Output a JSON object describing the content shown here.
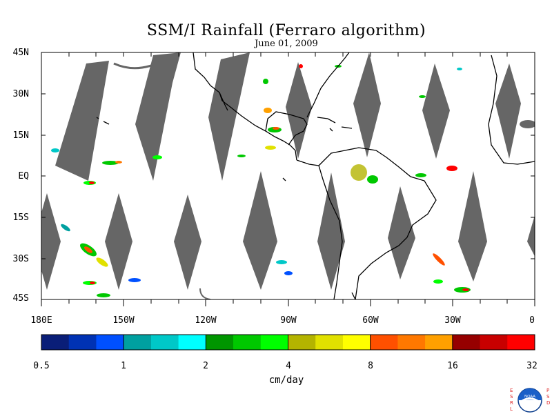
{
  "title": "SSM/I Rainfall (Ferraro algorithm)",
  "subtitle": "June 01, 2009",
  "lat_labels": [
    "45N",
    "30N",
    "15N",
    "EQ",
    "15S",
    "30S",
    "45S"
  ],
  "lon_labels": [
    "180E",
    "150W",
    "120W",
    "90W",
    "60W",
    "30W",
    "0"
  ],
  "colorbar": {
    "colors": [
      "#0a1e78",
      "#0032b4",
      "#0050ff",
      "#00a0a0",
      "#00c8c8",
      "#00ffff",
      "#009600",
      "#00c800",
      "#00ff00",
      "#b4b400",
      "#e1e100",
      "#ffff00",
      "#ff5000",
      "#ff7800",
      "#ffa000",
      "#960000",
      "#c80000",
      "#ff0000"
    ],
    "tick_labels": [
      "0.5",
      "1",
      "2",
      "4",
      "8",
      "16",
      "32"
    ],
    "units": "cm/day"
  },
  "logo": {
    "left_letters": "ESRL",
    "right_letters": "PSD",
    "center_text": "NOAA"
  },
  "colors": {
    "swath_gap": "#666666",
    "coast": "#000000"
  }
}
